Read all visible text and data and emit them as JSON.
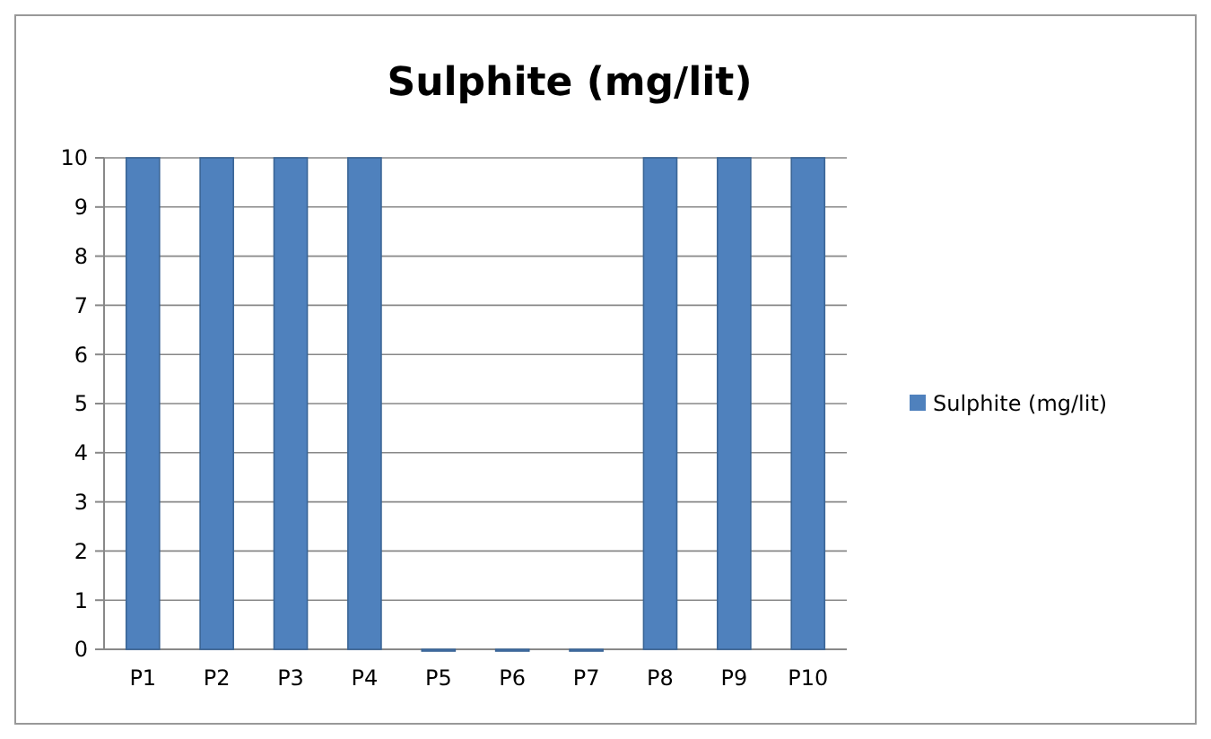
{
  "chart_data": {
    "type": "bar",
    "title": "Sulphite (mg/lit)",
    "categories": [
      "P1",
      "P2",
      "P3",
      "P4",
      "P5",
      "P6",
      "P7",
      "P8",
      "P9",
      "P10"
    ],
    "series": [
      {
        "name": "Sulphite (mg/lit)",
        "color": "#4f81bd",
        "values": [
          10,
          10,
          10,
          10,
          0,
          0,
          0,
          10,
          10,
          10
        ]
      }
    ],
    "ylim": [
      0,
      10
    ],
    "yticks": [
      0,
      1,
      2,
      3,
      4,
      5,
      6,
      7,
      8,
      9,
      10
    ],
    "grid": "y",
    "legend": "right"
  }
}
